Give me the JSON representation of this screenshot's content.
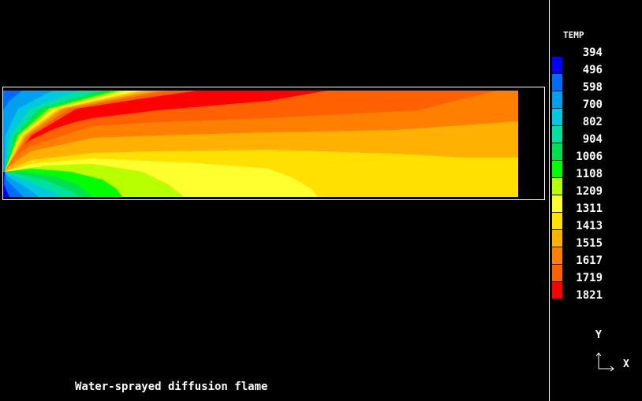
{
  "caption": "Water-sprayed diffusion flame",
  "axes": {
    "y_label": "Y",
    "x_label": "X"
  },
  "chart_data": {
    "type": "contour",
    "variable": "TEMP",
    "colorbar": {
      "title": "TEMP",
      "levels": [
        "394",
        "496",
        "598",
        "700",
        "802",
        "904",
        "1006",
        "1108",
        "1209",
        "1311",
        "1413",
        "1515",
        "1617",
        "1719",
        "1821"
      ],
      "colors": [
        "#0000ff",
        "#006cff",
        "#00a0f0",
        "#00c8e0",
        "#00e0a0",
        "#00e050",
        "#00ff00",
        "#b8ff00",
        "#ffff30",
        "#ffe000",
        "#ffb000",
        "#ff8000",
        "#ff6000",
        "#ff0000"
      ]
    },
    "placement": "colorbar right of plot"
  }
}
